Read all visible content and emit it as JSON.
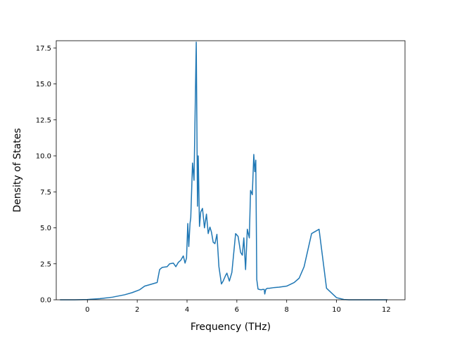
{
  "chart_data": {
    "type": "line",
    "title": "",
    "xlabel": "Frequency (THz)",
    "ylabel": "Density of States",
    "xlim": [
      -1.25,
      12.75
    ],
    "ylim": [
      0,
      18.0
    ],
    "xticks": [
      0,
      2,
      4,
      6,
      8,
      10,
      12
    ],
    "xtick_labels": [
      "0",
      "2",
      "4",
      "6",
      "8",
      "10",
      "12"
    ],
    "yticks": [
      0,
      2.5,
      5,
      7.5,
      10,
      12.5,
      15,
      17.5
    ],
    "ytick_labels": [
      "0.0",
      "2.5",
      "5.0",
      "7.5",
      "10.0",
      "12.5",
      "15.0",
      "17.5"
    ],
    "grid": false,
    "legend": "none",
    "series": [
      {
        "color": "#1f77b4",
        "x": [
          -1.1,
          -0.5,
          0.0,
          0.5,
          1.0,
          1.5,
          1.8,
          2.1,
          2.3,
          2.5,
          2.8,
          2.9,
          3.0,
          3.2,
          3.3,
          3.45,
          3.55,
          3.65,
          3.75,
          3.85,
          3.92,
          3.98,
          4.03,
          4.07,
          4.12,
          4.15,
          4.22,
          4.28,
          4.32,
          4.37,
          4.42,
          4.45,
          4.5,
          4.55,
          4.62,
          4.7,
          4.78,
          4.85,
          4.92,
          4.98,
          5.05,
          5.12,
          5.2,
          5.28,
          5.38,
          5.45,
          5.5,
          5.55,
          5.6,
          5.7,
          5.8,
          5.95,
          6.05,
          6.15,
          6.22,
          6.28,
          6.35,
          6.42,
          6.5,
          6.55,
          6.62,
          6.68,
          6.72,
          6.76,
          6.8,
          6.85,
          6.9,
          6.95,
          7.0,
          7.03,
          7.05,
          7.1,
          7.12,
          7.16,
          7.22,
          7.3,
          7.5,
          7.7,
          8.0,
          8.3,
          8.5,
          8.6,
          8.7,
          9.0,
          9.3,
          9.6,
          10.0,
          10.3,
          10.5,
          10.65,
          10.75,
          10.8,
          10.85,
          10.9,
          10.95,
          11.0,
          11.05,
          11.1,
          11.5,
          12.05
        ],
        "y": [
          0.0,
          0.0,
          0.02,
          0.08,
          0.18,
          0.35,
          0.5,
          0.7,
          0.95,
          1.05,
          1.2,
          2.1,
          2.25,
          2.3,
          2.5,
          2.55,
          2.3,
          2.6,
          2.75,
          3.05,
          2.55,
          2.9,
          5.3,
          3.7,
          5.3,
          5.7,
          9.5,
          8.3,
          12.5,
          17.9,
          6.5,
          10.0,
          5.1,
          6.1,
          6.35,
          5.0,
          5.95,
          4.6,
          5.05,
          4.7,
          4.0,
          3.9,
          4.55,
          2.3,
          1.1,
          1.3,
          1.5,
          1.7,
          1.85,
          1.3,
          1.9,
          4.6,
          4.4,
          3.3,
          3.1,
          4.3,
          2.1,
          4.9,
          4.3,
          7.6,
          7.3,
          10.1,
          8.9,
          9.7,
          1.4,
          0.75,
          0.72,
          0.7,
          0.7,
          0.72,
          0.72,
          0.72,
          0.4,
          0.72,
          0.8,
          0.8,
          0.85,
          0.88,
          0.95,
          1.2,
          1.5,
          1.9,
          2.3,
          4.6,
          4.9,
          0.8,
          0.15,
          0.02,
          0.0,
          0.0,
          0.0,
          0.0,
          0.0,
          0.0,
          0.0,
          0.0,
          0.0,
          0.0,
          0.0,
          0.0
        ]
      }
    ]
  }
}
